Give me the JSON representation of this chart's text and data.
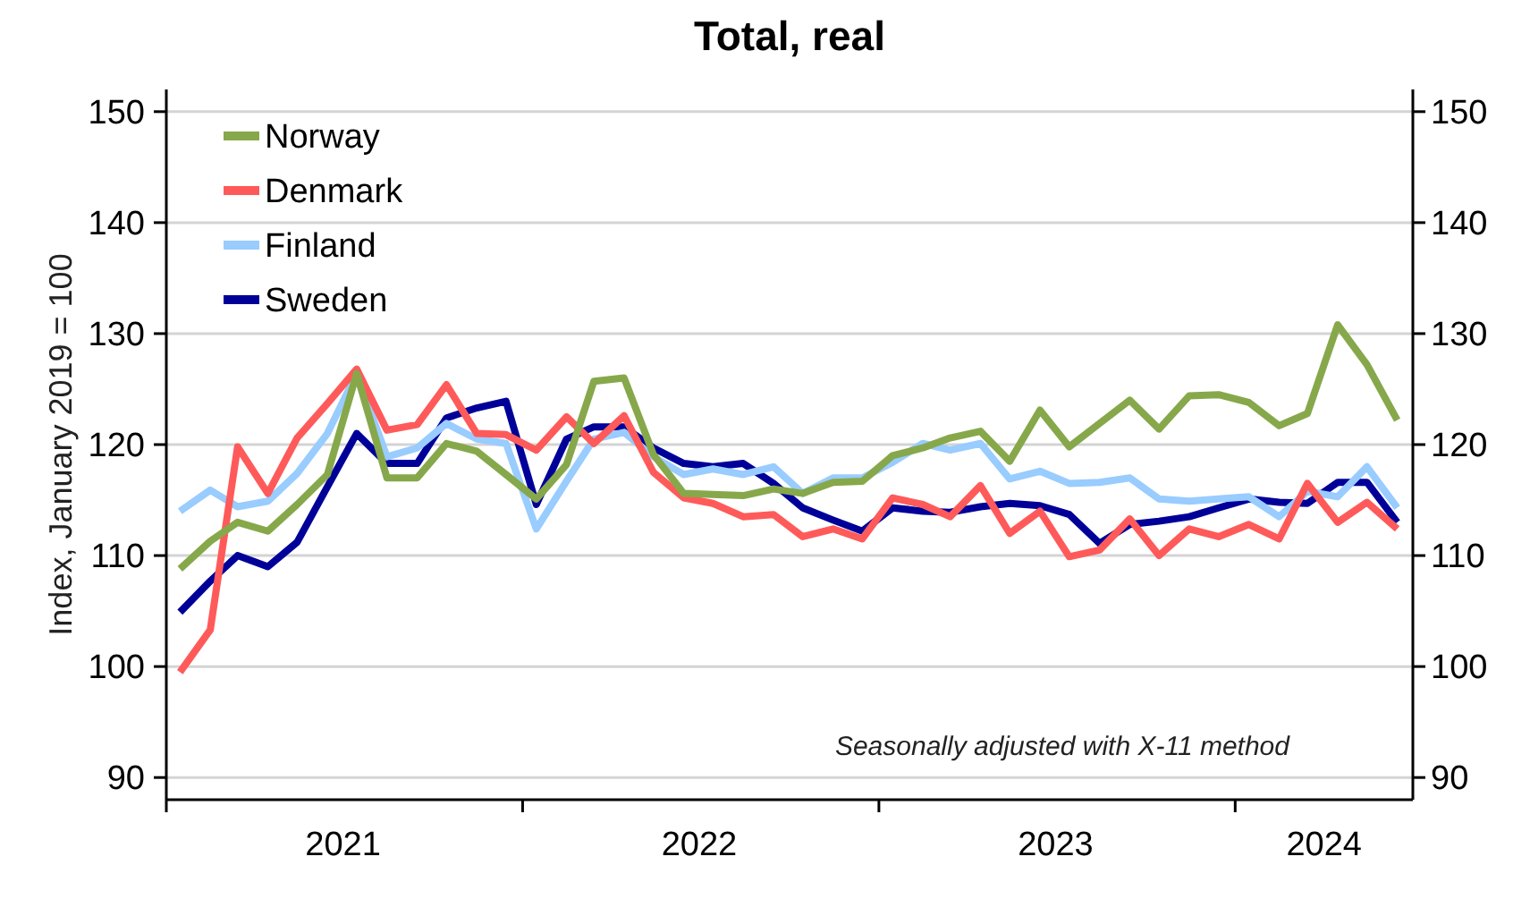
{
  "chart_data": {
    "type": "line",
    "title": "Total, real",
    "ylabel": "Index, January 2019 = 100",
    "annotations": [
      "Seasonally adjusted with X-11 method"
    ],
    "x": [
      "2021-01-15",
      "2021-02-15",
      "2021-03-15",
      "2021-04-15",
      "2021-05-15",
      "2021-06-15",
      "2021-07-15",
      "2021-08-15",
      "2021-09-15",
      "2021-10-15",
      "2021-11-15",
      "2021-12-15",
      "2022-01-15",
      "2022-02-15",
      "2022-03-15",
      "2022-04-15",
      "2022-05-15",
      "2022-06-15",
      "2022-07-15",
      "2022-08-15",
      "2022-09-15",
      "2022-10-15",
      "2022-11-15",
      "2022-12-15",
      "2023-01-15",
      "2023-02-15",
      "2023-03-15",
      "2023-04-15",
      "2023-05-15",
      "2023-06-15",
      "2023-07-15",
      "2023-08-15",
      "2023-09-15",
      "2023-10-15",
      "2023-11-15",
      "2023-12-15",
      "2024-01-15",
      "2024-02-15",
      "2024-03-15",
      "2024-04-15",
      "2024-05-15",
      "2024-06-15"
    ],
    "series": [
      {
        "name": "Norway",
        "color": "#86a84b",
        "values": [
          108.8,
          111.3,
          113.0,
          112.2,
          114.6,
          117.3,
          126.4,
          117.0,
          117.0,
          120.1,
          119.4,
          117.3,
          115.1,
          118.2,
          125.7,
          126.0,
          119.1,
          115.6,
          115.5,
          115.4,
          116.0,
          115.6,
          116.6,
          116.7,
          119.0,
          119.7,
          120.6,
          121.2,
          118.5,
          123.1,
          119.8,
          121.9,
          124.0,
          121.4,
          124.4,
          124.5,
          123.8,
          121.7,
          122.8,
          130.8,
          127.2,
          122.2
        ]
      },
      {
        "name": "Denmark",
        "color": "#ff5a5a",
        "values": [
          99.5,
          103.3,
          119.8,
          115.6,
          120.6,
          123.7,
          126.8,
          121.3,
          121.8,
          125.4,
          121.0,
          120.9,
          119.5,
          122.5,
          120.1,
          122.6,
          117.5,
          115.2,
          114.7,
          113.5,
          113.7,
          111.7,
          112.4,
          111.5,
          115.2,
          114.6,
          113.5,
          116.3,
          112.0,
          114.0,
          109.9,
          110.5,
          113.3,
          110.0,
          112.4,
          111.7,
          112.8,
          111.5,
          116.5,
          113.0,
          114.8,
          112.4
        ]
      },
      {
        "name": "Finland",
        "color": "#99ccff",
        "values": [
          114.0,
          115.9,
          114.4,
          114.9,
          117.4,
          121.0,
          126.4,
          118.9,
          119.7,
          121.9,
          120.5,
          120.1,
          112.4,
          116.7,
          120.5,
          121.1,
          118.9,
          117.3,
          117.8,
          117.3,
          118.0,
          115.6,
          117.0,
          117.0,
          118.4,
          120.1,
          119.5,
          120.1,
          116.9,
          117.6,
          116.5,
          116.6,
          117.0,
          115.1,
          114.9,
          115.1,
          115.3,
          113.5,
          115.8,
          115.3,
          118.0,
          114.3
        ]
      },
      {
        "name": "Sweden",
        "color": "#000099",
        "values": [
          104.9,
          107.7,
          110.0,
          109.0,
          111.2,
          116.2,
          121.0,
          118.3,
          118.3,
          122.4,
          123.3,
          123.9,
          114.6,
          120.5,
          121.6,
          121.6,
          119.7,
          118.3,
          118.0,
          118.3,
          116.5,
          114.3,
          113.2,
          112.2,
          114.3,
          114.0,
          113.9,
          114.4,
          114.7,
          114.5,
          113.7,
          111.1,
          112.8,
          113.1,
          113.5,
          114.3,
          115.1,
          114.8,
          114.7,
          116.6,
          116.6,
          113.0
        ]
      }
    ],
    "xlim": [
      "2021-01-01",
      "2024-07-01"
    ],
    "xticks": [
      {
        "value": "2021-01-01",
        "label": null
      },
      {
        "value": "2021-07-01",
        "label": "2021"
      },
      {
        "value": "2022-01-01",
        "label": null
      },
      {
        "value": "2022-07-01",
        "label": "2022"
      },
      {
        "value": "2023-01-01",
        "label": null
      },
      {
        "value": "2023-07-01",
        "label": "2023"
      },
      {
        "value": "2024-01-01",
        "label": null
      },
      {
        "value": "2024-04-01",
        "label": "2024"
      }
    ],
    "ylim": [
      88,
      152
    ],
    "yticks": [
      90,
      100,
      110,
      120,
      130,
      140,
      150
    ],
    "y2lim": [
      88,
      152
    ],
    "y2ticks": [
      90,
      100,
      110,
      120,
      130,
      140,
      150
    ],
    "grid": "y",
    "legend": "top left"
  }
}
